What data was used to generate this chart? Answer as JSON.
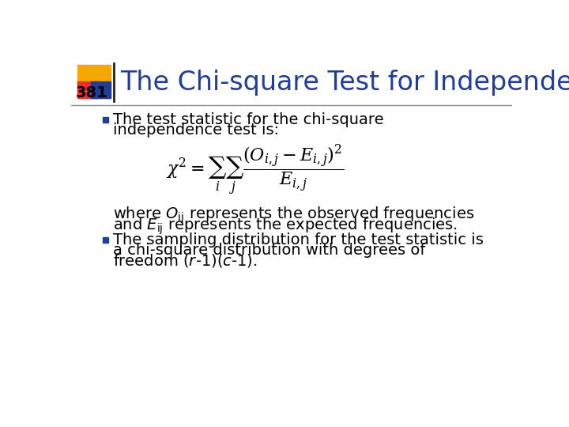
{
  "title": "The Chi-square Test for Independence-III",
  "slide_number": "381",
  "title_color": "#1F3D99",
  "background_color": "#FFFFFF",
  "bullet_color": "#1F3D99",
  "bullet1_line1": "The test statistic for the chi-square",
  "bullet1_line2": "independence test is:",
  "formula": "$\\chi^2 = \\sum_i \\sum_j \\dfrac{(O_{i,j} - E_{i,j})^2}{E_{i,j}}$",
  "where_line1": "where $O_{\\mathrm{ij}}$ represents the observed frequencies",
  "where_line2": "and $E_{\\mathrm{ij}}$ represents the expected frequencies.",
  "bullet2_line1": "The sampling distribution for the test statistic is",
  "bullet2_line2": "a chi-square distribution with degrees of",
  "bullet2_line3": "freedom ($\\mathit{r}$-1)($\\mathit{c}$-1).",
  "yellow_color": "#F5A800",
  "red_color": "#E83232",
  "blue_color": "#1F3D99",
  "title_fontsize": 24,
  "body_fontsize": 14,
  "formula_fontsize": 16,
  "number_fontsize": 14
}
